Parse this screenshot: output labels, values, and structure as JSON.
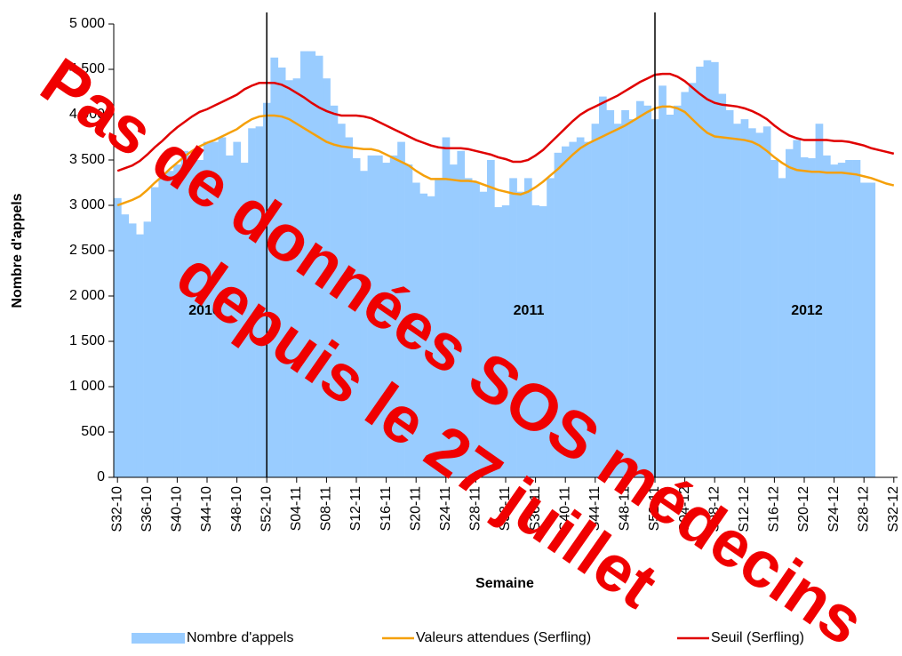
{
  "chart_data": {
    "type": "bar",
    "y_axis_label": "Nombre d'appels",
    "x_axis_label": "Semaine",
    "categories": [
      "S32-10",
      null,
      null,
      null,
      "S36-10",
      null,
      null,
      null,
      "S40-10",
      null,
      null,
      null,
      "S44-10",
      null,
      null,
      null,
      "S48-10",
      null,
      null,
      null,
      "S52-10",
      null,
      null,
      null,
      "S04-11",
      null,
      null,
      null,
      "S08-11",
      null,
      null,
      null,
      "S12-11",
      null,
      null,
      null,
      "S16-11",
      null,
      null,
      null,
      "S20-11",
      null,
      null,
      null,
      "S24-11",
      null,
      null,
      null,
      "S28-11",
      null,
      null,
      null,
      "S32-11",
      null,
      null,
      null,
      "S36-11",
      null,
      null,
      null,
      "S40-11",
      null,
      null,
      null,
      "S44-11",
      null,
      null,
      null,
      "S48-11",
      null,
      null,
      null,
      "S52-11",
      null,
      null,
      null,
      "S04-12",
      null,
      null,
      null,
      "S08-12",
      null,
      null,
      null,
      "S12-12",
      null,
      null,
      null,
      "S16-12",
      null,
      null,
      null,
      "S20-12",
      null,
      null,
      null,
      "S24-12",
      null,
      null,
      null,
      "S28-12",
      null,
      null,
      null,
      "S32-12"
    ],
    "series": [
      {
        "name": "Nombre d'appels",
        "type": "bar",
        "color": "#99ccff",
        "values": [
          3080,
          2900,
          2800,
          2680,
          2820,
          3200,
          3300,
          3380,
          3450,
          3600,
          3550,
          3500,
          3700,
          3700,
          3750,
          3550,
          3700,
          3470,
          3850,
          3870,
          4130,
          4630,
          4520,
          4380,
          4400,
          4700,
          4700,
          4650,
          4400,
          4100,
          3900,
          3750,
          3520,
          3380,
          3550,
          3550,
          3470,
          3550,
          3700,
          3450,
          3250,
          3130,
          3100,
          3300,
          3750,
          3450,
          3600,
          3300,
          3250,
          3150,
          3500,
          2980,
          3000,
          3300,
          3150,
          3300,
          3000,
          2990,
          3300,
          3580,
          3650,
          3700,
          3750,
          3700,
          3900,
          4200,
          4050,
          3900,
          4050,
          3950,
          4150,
          4100,
          3950,
          4320,
          4000,
          4100,
          4250,
          4350,
          4530,
          4600,
          4580,
          4230,
          4050,
          3900,
          3950,
          3850,
          3800,
          3870,
          3500,
          3300,
          3620,
          3720,
          3530,
          3520,
          3900,
          3550,
          3450,
          3470,
          3500,
          3500,
          3250,
          3250,
          null,
          null,
          null
        ]
      },
      {
        "name": "Valeurs attendues (Serfling)",
        "type": "line",
        "color": "#f5a00a",
        "values": [
          3000,
          3030,
          3060,
          3100,
          3170,
          3250,
          3320,
          3400,
          3470,
          3540,
          3600,
          3650,
          3690,
          3720,
          3760,
          3800,
          3840,
          3900,
          3950,
          3980,
          3990,
          3990,
          3980,
          3950,
          3900,
          3850,
          3800,
          3750,
          3700,
          3670,
          3650,
          3640,
          3630,
          3620,
          3620,
          3600,
          3560,
          3520,
          3480,
          3440,
          3380,
          3330,
          3290,
          3290,
          3290,
          3280,
          3270,
          3270,
          3260,
          3230,
          3200,
          3170,
          3150,
          3130,
          3120,
          3150,
          3200,
          3260,
          3330,
          3400,
          3480,
          3560,
          3630,
          3680,
          3720,
          3760,
          3800,
          3840,
          3880,
          3930,
          3980,
          4030,
          4070,
          4090,
          4090,
          4070,
          4030,
          3950,
          3870,
          3800,
          3760,
          3750,
          3740,
          3730,
          3720,
          3700,
          3660,
          3600,
          3530,
          3470,
          3420,
          3390,
          3380,
          3370,
          3370,
          3360,
          3360,
          3360,
          3350,
          3340,
          3320,
          3300,
          3270,
          3240,
          3220
        ]
      },
      {
        "name": "Seuil (Serfling)",
        "type": "line",
        "color": "#e00000",
        "values": [
          3380,
          3410,
          3440,
          3490,
          3560,
          3640,
          3710,
          3790,
          3860,
          3920,
          3980,
          4030,
          4060,
          4100,
          4140,
          4180,
          4220,
          4280,
          4320,
          4350,
          4350,
          4350,
          4330,
          4290,
          4240,
          4190,
          4130,
          4080,
          4040,
          4010,
          3990,
          3990,
          3990,
          3980,
          3960,
          3920,
          3880,
          3840,
          3800,
          3760,
          3720,
          3690,
          3660,
          3640,
          3630,
          3630,
          3630,
          3620,
          3600,
          3580,
          3560,
          3530,
          3510,
          3480,
          3480,
          3500,
          3550,
          3610,
          3690,
          3770,
          3850,
          3930,
          4000,
          4050,
          4090,
          4130,
          4170,
          4210,
          4260,
          4310,
          4360,
          4400,
          4440,
          4450,
          4450,
          4420,
          4370,
          4300,
          4230,
          4170,
          4130,
          4110,
          4100,
          4090,
          4070,
          4040,
          4000,
          3950,
          3880,
          3820,
          3770,
          3740,
          3720,
          3720,
          3720,
          3720,
          3710,
          3710,
          3700,
          3680,
          3660,
          3630,
          3610,
          3590,
          3570
        ]
      }
    ],
    "ylim": [
      0,
      5000
    ],
    "yticks": [
      0,
      500,
      {
        "value": 1000,
        "label": "1 000"
      },
      {
        "value": 1500,
        "label": "1 500"
      },
      {
        "value": 2000,
        "label": "2 000"
      },
      {
        "value": 2500,
        "label": "2 500"
      },
      {
        "value": 3000,
        "label": "3 000"
      },
      {
        "value": 3500,
        "label": "3 500"
      },
      {
        "value": 4000,
        "label": "4 000"
      },
      {
        "value": 4500,
        "label": "4 500"
      },
      {
        "value": 5000,
        "label": "5 000"
      }
    ],
    "separators": [
      "S52-10",
      "S52-11"
    ],
    "year_labels": [
      "2010",
      "2011",
      "2012"
    ],
    "overlay_text": [
      "Pas de données SOS médecins",
      "depuis le 27 juillet"
    ],
    "legend": "bottom"
  }
}
